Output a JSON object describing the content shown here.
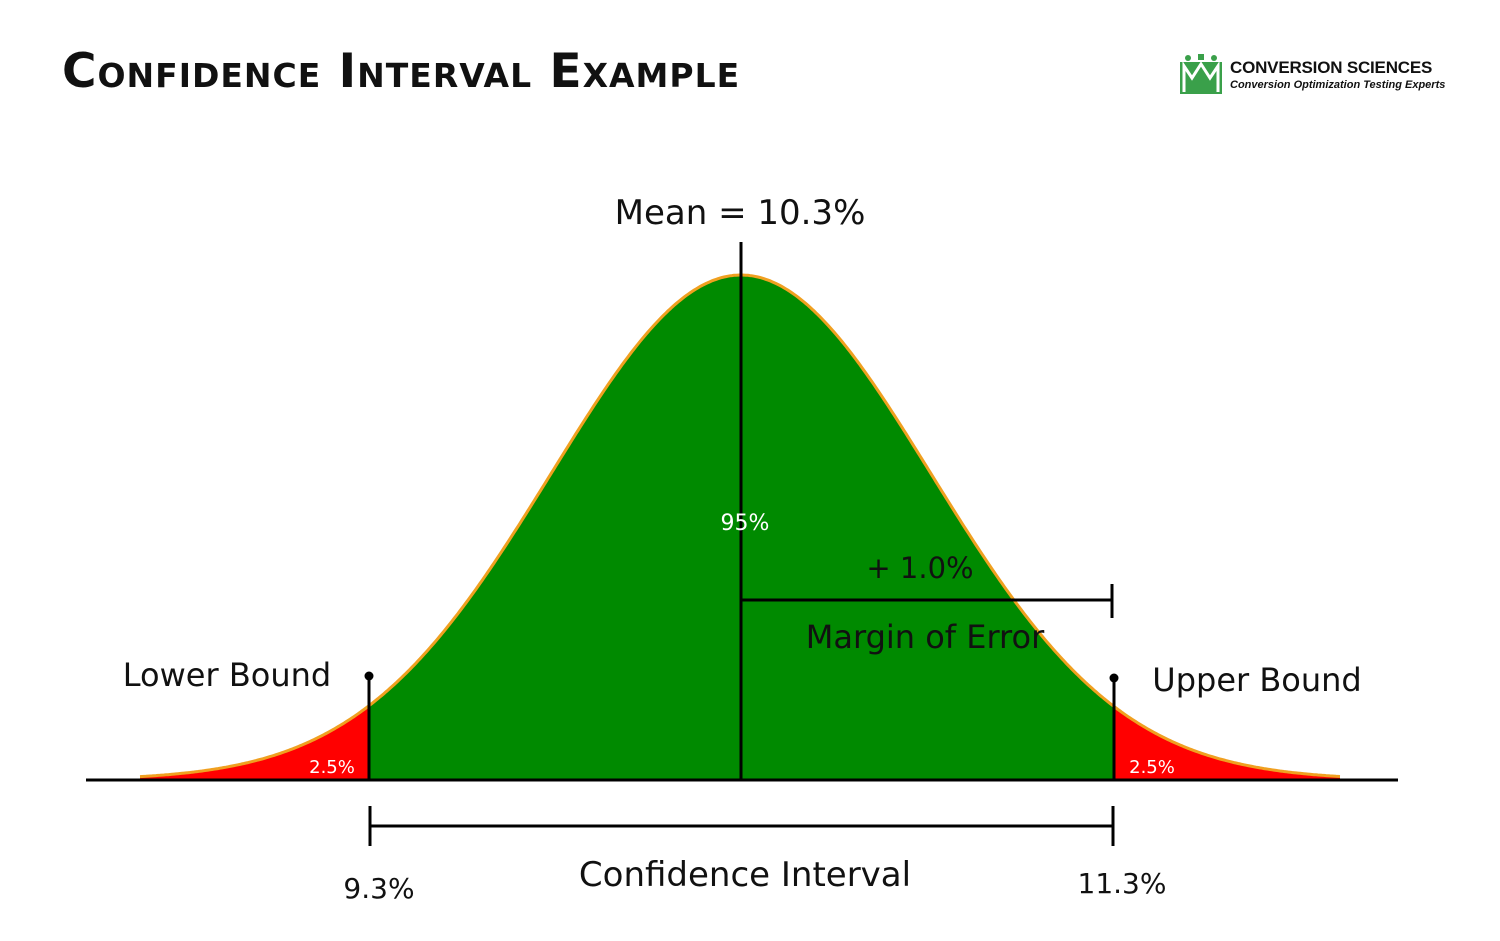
{
  "title": "Confidence Interval Example",
  "logo": {
    "name": "CONVERSION SCIENCES",
    "tagline": "Conversion Optimization Testing Experts"
  },
  "labels": {
    "mean": "Mean = 10.3%",
    "center_percent": "95%",
    "margin_value": "+ 1.0%",
    "margin_label": "Margin of Error",
    "lower_bound": "Lower Bound",
    "upper_bound": "Upper Bound",
    "left_tail": "2.5%",
    "right_tail": "2.5%",
    "lower_value": "9.3%",
    "upper_value": "11.3%",
    "interval_label": "Confidence Interval"
  },
  "colors": {
    "center_fill": "#008a00",
    "tail_fill": "#ff0000",
    "curve_stroke": "#f0a020",
    "line": "#000000"
  }
}
